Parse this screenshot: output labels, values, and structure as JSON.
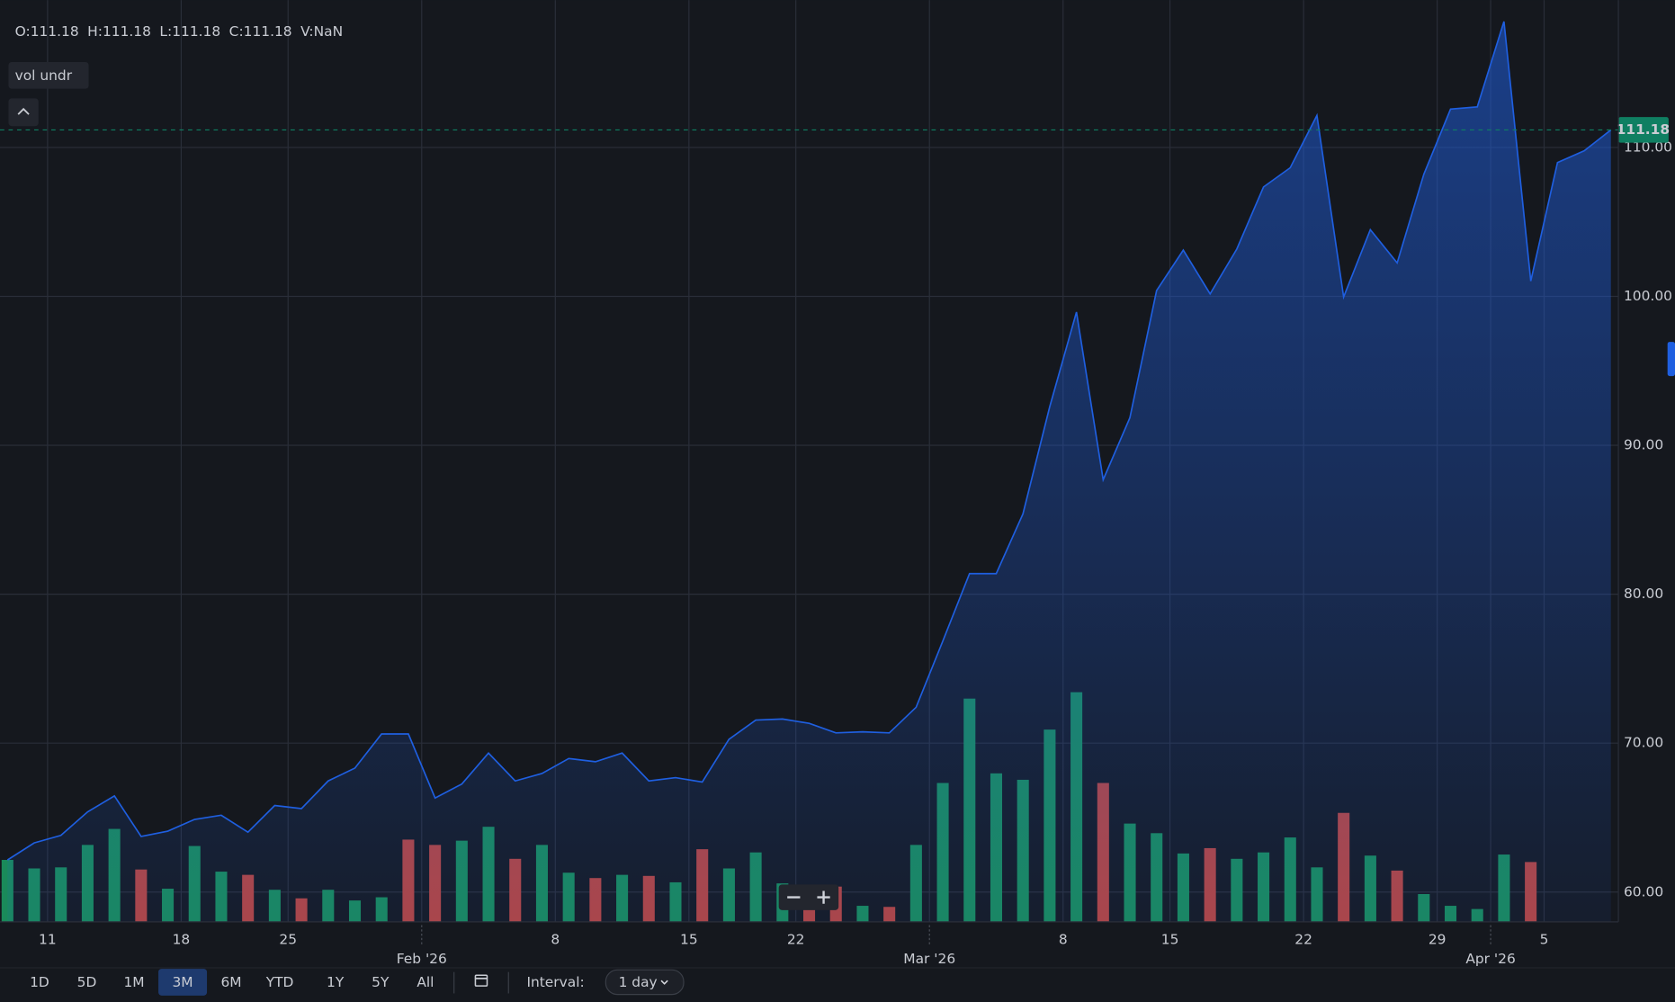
{
  "chart_data": {
    "type": "area",
    "ohlc": [
      "O:111.18",
      "H:111.18",
      "L:111.18",
      "C:111.18",
      "V:NaN"
    ],
    "indicator": "vol undr",
    "color": "#1f5fe0",
    "categories": [
      null,
      null,
      "11",
      null,
      null,
      null,
      null,
      "18",
      null,
      null,
      null,
      "25",
      null,
      null,
      null,
      null,
      "Feb '26",
      null,
      null,
      null,
      null,
      "8",
      null,
      null,
      null,
      null,
      "15",
      null,
      null,
      null,
      "22",
      null,
      null,
      null,
      null,
      "Mar '26",
      null,
      null,
      null,
      null,
      "8",
      null,
      null,
      null,
      "15",
      null,
      null,
      null,
      null,
      "22",
      null,
      null,
      null,
      null,
      "29",
      null,
      "Apr '26",
      null,
      "5",
      null,
      null
    ],
    "values": [
      62.15,
      63.3,
      63.8,
      65.38,
      66.46,
      63.73,
      64.09,
      64.88,
      65.16,
      64.02,
      65.81,
      65.6,
      67.46,
      68.32,
      70.62,
      70.62,
      66.31,
      67.25,
      69.33,
      67.46,
      67.96,
      68.97,
      68.75,
      69.33,
      67.46,
      67.68,
      67.39,
      70.26,
      71.55,
      71.62,
      71.33,
      70.69,
      70.76,
      70.69,
      72.41,
      76.86,
      81.38,
      81.38,
      85.39,
      92.57,
      98.95,
      87.69,
      91.85,
      100.39,
      103.11,
      100.17,
      103.18,
      107.35,
      108.64,
      112.15,
      99.96,
      104.48,
      102.25,
      108.21,
      112.58,
      112.73,
      118.46,
      101.03,
      108.99,
      109.78,
      111.18
    ],
    "volume": {
      "values": [
        58,
        50,
        51,
        72,
        87,
        49,
        31,
        71,
        47,
        44,
        30,
        22,
        30,
        20,
        23,
        77,
        72,
        76,
        89,
        59,
        72,
        46,
        41,
        44,
        43,
        37,
        68,
        50,
        65,
        36,
        23,
        33,
        15,
        14,
        72,
        130,
        209,
        139,
        133,
        180,
        215,
        130,
        92,
        83,
        64,
        69,
        59,
        65,
        79,
        51,
        102,
        62,
        48,
        26,
        15,
        12,
        63,
        56,
        null,
        null,
        null
      ],
      "colors": [
        "#1a8a5a",
        "#1a8a5a",
        "#1a8a5a",
        "#1a8a5a",
        "#1a8a5a",
        "#b5443f",
        "#1a8a5a",
        "#1a8a5a",
        "#1a8a5a",
        "#b5443f",
        "#1a8a5a",
        "#b5443f",
        "#1a8a5a",
        "#1a8a5a",
        "#1a8a5a",
        "#b5443f",
        "#b5443f",
        "#1a8a5a",
        "#1a8a5a",
        "#b5443f",
        "#1a8a5a",
        "#1a8a5a",
        "#b5443f",
        "#1a8a5a",
        "#b5443f",
        "#1a8a5a",
        "#b5443f",
        "#1a8a5a",
        "#1a8a5a",
        "#1a8a5a",
        "#b5443f",
        "#b5443f",
        "#1a8a5a",
        "#b5443f",
        "#1a8a5a",
        "#1a8a5a",
        "#1a8a5a",
        "#1a8a5a",
        "#1a8a5a",
        "#1a8a5a",
        "#1a8a5a",
        "#b5443f",
        "#1a8a5a",
        "#1a8a5a",
        "#1a8a5a",
        "#b5443f",
        "#1a8a5a",
        "#1a8a5a",
        "#1a8a5a",
        "#1a8a5a",
        "#b5443f",
        "#1a8a5a",
        "#b5443f",
        "#1a8a5a",
        "#1a8a5a",
        "#1a8a5a",
        "#1a8a5a",
        "#b5443f",
        null,
        null,
        null
      ]
    },
    "ylim": [
      58,
      119.9
    ],
    "yticks": [
      {
        "value": 60,
        "label": "60.00"
      },
      {
        "value": 70,
        "label": "70.00"
      },
      {
        "value": 80,
        "label": "80.00"
      },
      {
        "value": 90,
        "label": "90.00"
      },
      {
        "value": 100,
        "label": "100.00"
      },
      {
        "value": 110,
        "label": "110.00"
      }
    ],
    "grid": true,
    "last_price_color": "#0f7f62"
  },
  "toolbar": {
    "ranges": [
      "1D",
      "5D",
      "1M",
      "3M",
      "6M",
      "YTD",
      "1Y",
      "5Y",
      "All"
    ],
    "selected": 3,
    "interval_label": "Interval:",
    "interval": "1 day"
  }
}
